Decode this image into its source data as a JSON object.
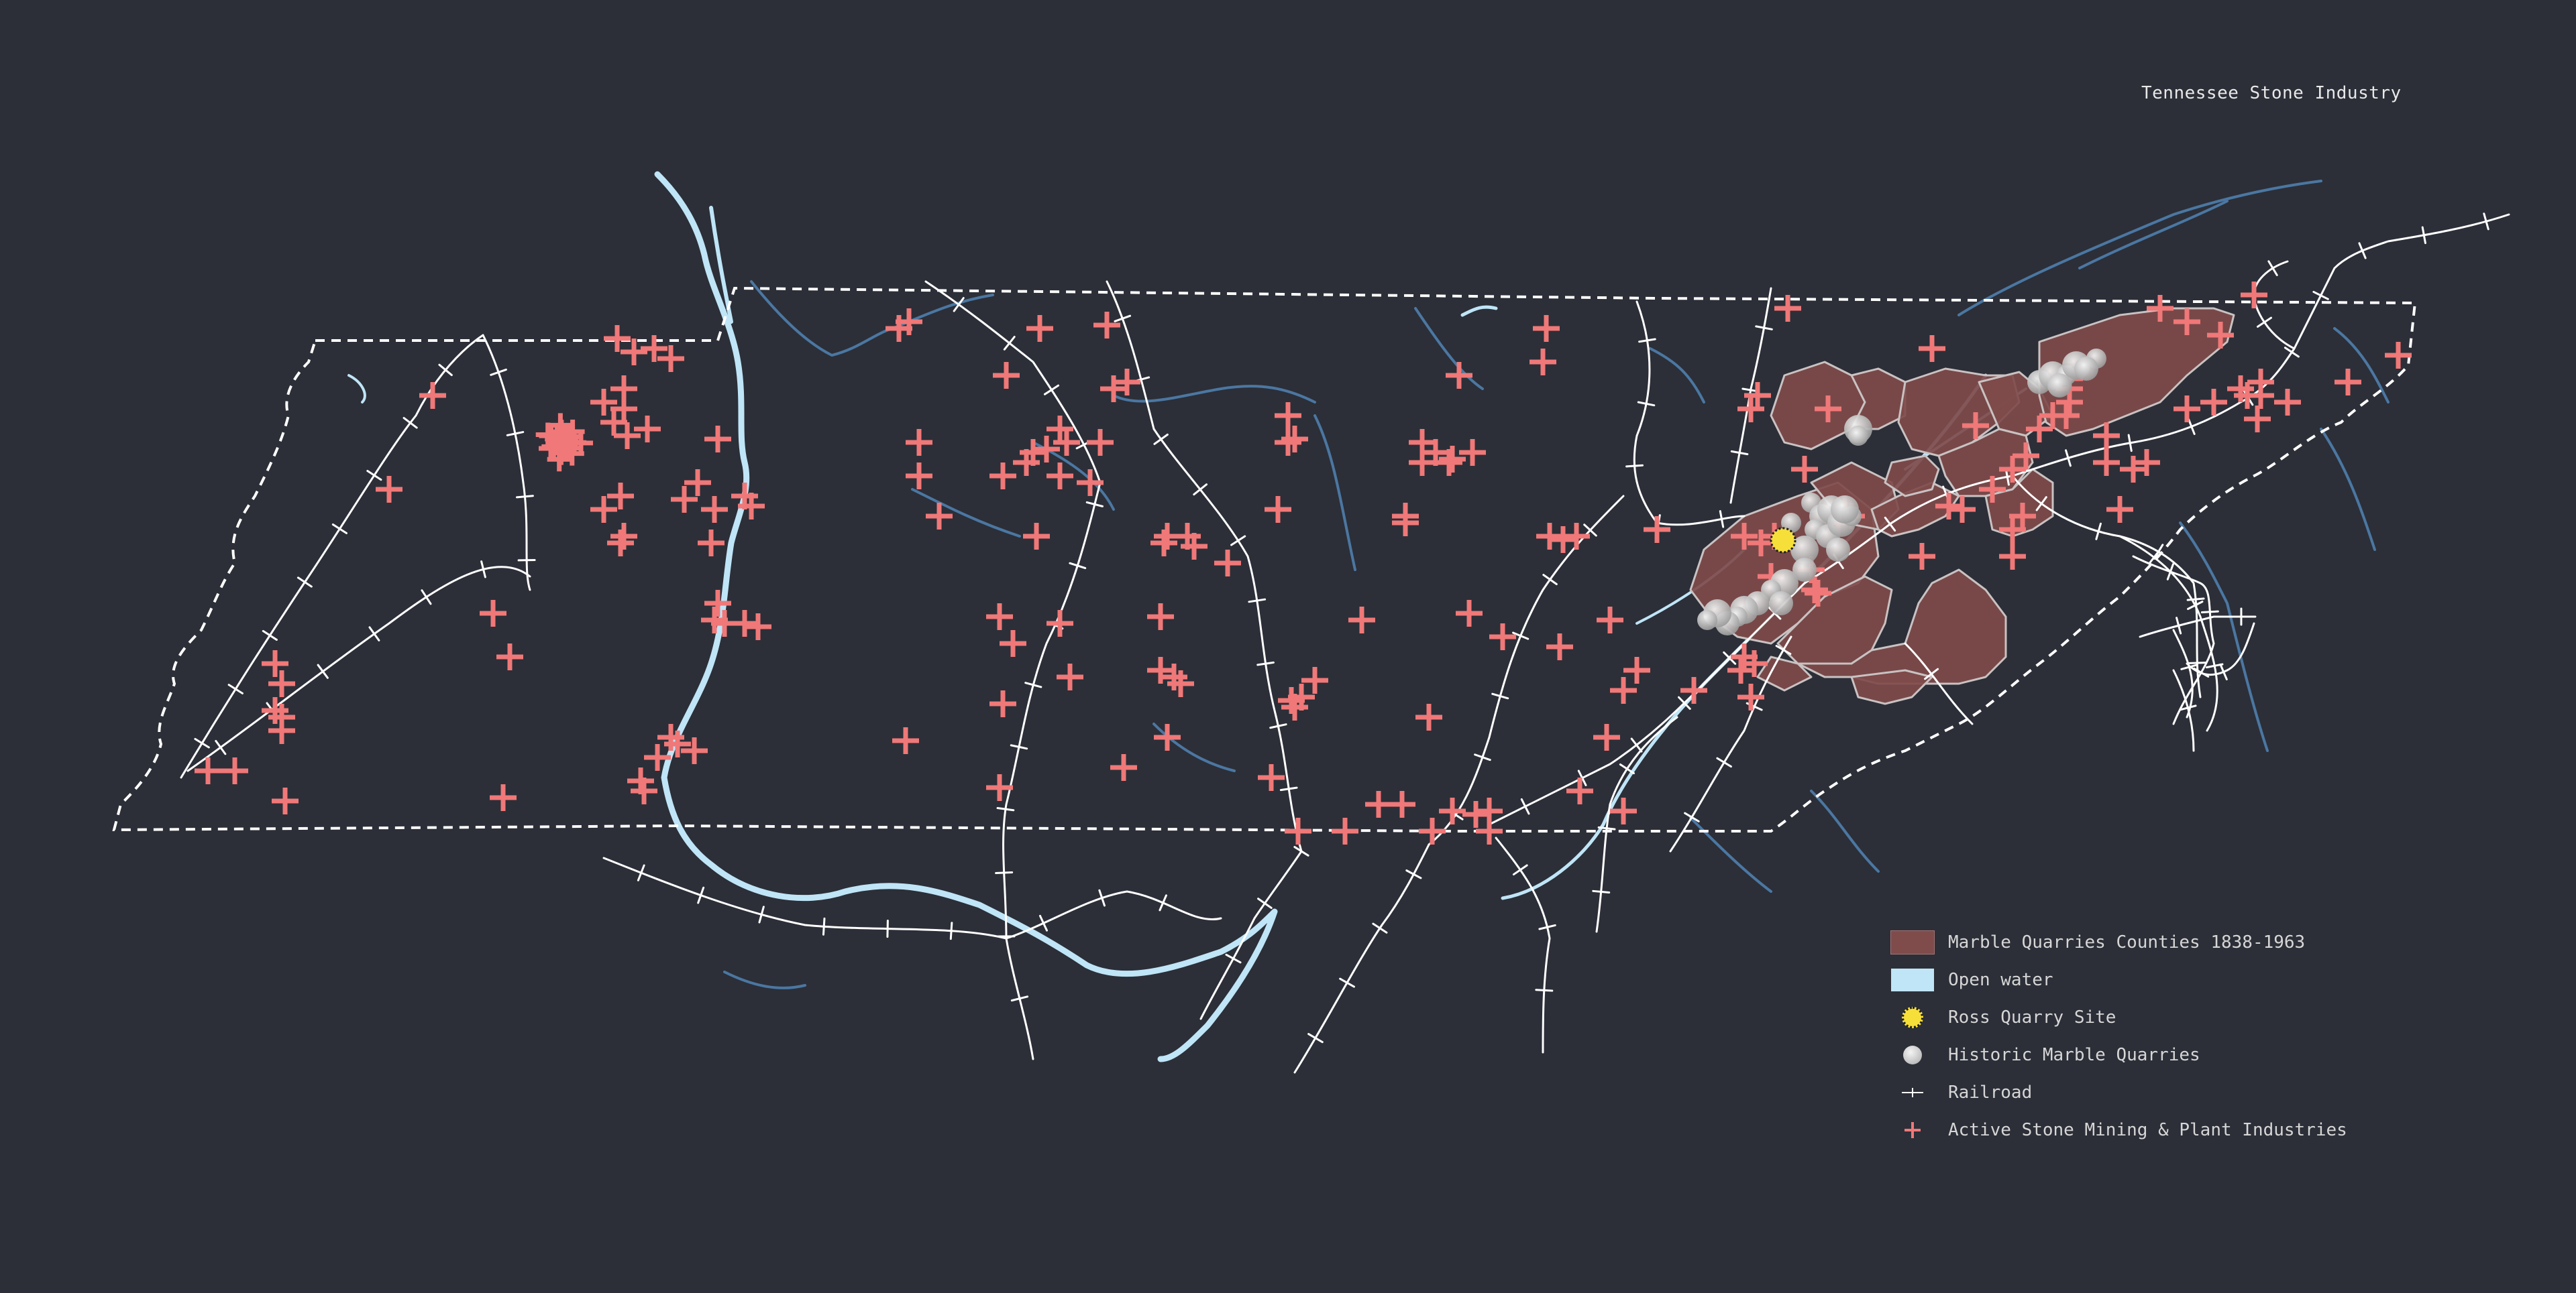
{
  "map": {
    "title": "Tennessee Stone Industry"
  },
  "legend": {
    "items": [
      {
        "label": "Marble Quarries Counties 1838-1963",
        "symbol": "county-fill",
        "color": "#7f4b4b"
      },
      {
        "label": "Open water",
        "symbol": "water-fill",
        "color": "#bfe5f7"
      },
      {
        "label": "Ross Quarry Site",
        "symbol": "yellow-dot",
        "color": "#f7df3a"
      },
      {
        "label": "Historic Marble Quarries",
        "symbol": "grey-dot",
        "color": "#c9c9c9"
      },
      {
        "label": "Railroad",
        "symbol": "railroad-line",
        "color": "#ffffff"
      },
      {
        "label": "Active Stone Mining & Plant Industries",
        "symbol": "red-cross",
        "color": "#f07878"
      }
    ]
  },
  "colors": {
    "background": "#2c2f38",
    "border": "#ffffff",
    "railroad": "#ffffff",
    "river": "#bfe5f7",
    "tributary": "#4f7fae",
    "county": "#7f4b4b",
    "active": "#f07878",
    "ross": "#f7df3a",
    "quarry": "#c9c9c9"
  }
}
